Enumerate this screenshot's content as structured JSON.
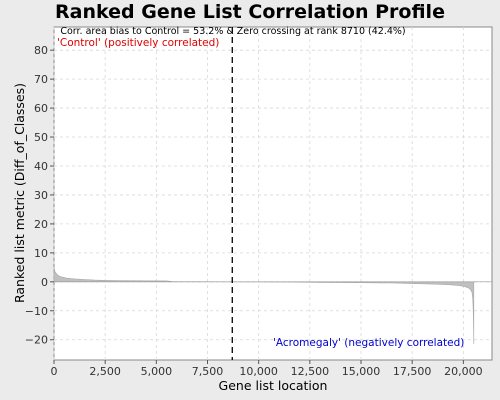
{
  "chart_data": {
    "type": "area",
    "title": "Ranked Gene List Correlation Profile",
    "xlabel": "Gene list location",
    "ylabel": "Ranked list metric (Diff_of_Classes)",
    "xlim": [
      0,
      21400
    ],
    "ylim": [
      -27,
      88
    ],
    "xticks": [
      0,
      2500,
      5000,
      7500,
      10000,
      12500,
      15000,
      17500,
      20000
    ],
    "xtick_labels": [
      "0",
      "2,500",
      "5,000",
      "7,500",
      "10,000",
      "12,500",
      "15,000",
      "17,500",
      "20,000"
    ],
    "yticks": [
      -20,
      -10,
      0,
      10,
      20,
      30,
      40,
      50,
      60,
      70,
      80
    ],
    "ytick_labels": [
      "−20",
      "−10",
      "0",
      "10",
      "20",
      "30",
      "40",
      "50",
      "60",
      "70",
      "80"
    ],
    "grid": true,
    "series": [
      {
        "x": [
          0,
          50,
          150,
          300,
          600,
          1000,
          1500,
          2000,
          2500,
          3500,
          4500,
          5500,
          5800,
          7000,
          8000,
          8710,
          10000,
          11500,
          13000,
          15000,
          16500,
          17500,
          18500,
          19300,
          19800,
          20100,
          20300,
          20420,
          20460,
          20490,
          20510
        ],
        "values": [
          5,
          3.5,
          2.5,
          1.8,
          1.3,
          1.0,
          0.8,
          0.6,
          0.5,
          0.4,
          0.35,
          0.3,
          0.1,
          0.05,
          0.02,
          0,
          -0.05,
          -0.1,
          -0.2,
          -0.3,
          -0.4,
          -0.6,
          -0.8,
          -1.0,
          -1.3,
          -1.7,
          -2.3,
          -3.5,
          -6,
          -12,
          -21.5
        ],
        "color": "#c0c0c0"
      }
    ],
    "zero_crossing_rank": 8710,
    "annotation": "Corr. area bias to Control = 53.2% & Zero crossing at rank 8710 (42.4%)",
    "positive_label": "'Control' (positively correlated)",
    "negative_label": "'Acromegaly' (negatively correlated)",
    "colors": {
      "positive_label": "#e00000",
      "negative_label": "#0000cc",
      "fill": "#c0c0c0",
      "background": "#ffffff"
    }
  }
}
